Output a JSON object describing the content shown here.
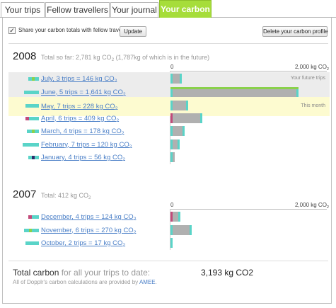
{
  "tabs": [
    {
      "label": "Your trips",
      "active": false
    },
    {
      "label": "Fellow travellers",
      "active": false
    },
    {
      "label": "Your journal",
      "active": false
    },
    {
      "label": "Your carbon",
      "active": true
    }
  ],
  "share": {
    "checked": true,
    "label": "Share your carbon totals with fellow travellers?",
    "update_label": "Update",
    "delete_label": "Delete your carbon profile"
  },
  "colors": {
    "tab_active": "#a6dd3a",
    "link": "#4a7fc7",
    "future_row": "#ececec",
    "current_row": "#fdfbd0",
    "bar_grey": "#b0b0b0",
    "bar_teal": "#5ad4c8",
    "bar_green": "#8ad14b",
    "bar_pink": "#c24a7a",
    "bar_navy": "#2d2d6b"
  },
  "scale": {
    "min_label": "0",
    "max_label": "2,000",
    "unit": "kg CO2",
    "max": 2000
  },
  "years": [
    {
      "year": "2008",
      "total_text": "Total so far: 2,781 kg CO2 (1,787kg of which is in the future)",
      "months": [
        {
          "label": "July, 3 trips = 146 kg CO2",
          "value": 146,
          "state": "future",
          "note": "Your future trips"
        },
        {
          "label": "June, 5 trips = 1,641 kg CO2",
          "value": 1641,
          "state": "future",
          "note": ""
        },
        {
          "label": "May, 7 trips = 228 kg CO2",
          "value": 228,
          "state": "current",
          "note": "This month"
        },
        {
          "label": "April, 6 trips = 409 kg CO2",
          "value": 409,
          "state": "past",
          "note": ""
        },
        {
          "label": "March, 4 trips = 178 kg CO2",
          "value": 178,
          "state": "past",
          "note": ""
        },
        {
          "label": "February, 7 trips = 120 kg CO2",
          "value": 120,
          "state": "past",
          "note": ""
        },
        {
          "label": "January, 4 trips = 56 kg CO2",
          "value": 56,
          "state": "past",
          "note": ""
        }
      ]
    },
    {
      "year": "2007",
      "total_text": "Total: 412 kg CO2",
      "months": [
        {
          "label": "December, 4 trips = 124 kg CO2",
          "value": 124,
          "state": "past",
          "note": ""
        },
        {
          "label": "November, 6 trips = 270 kg CO2",
          "value": 270,
          "state": "past",
          "note": ""
        },
        {
          "label": "October, 2 trips = 17 kg CO2",
          "value": 17,
          "state": "past",
          "note": ""
        }
      ]
    }
  ],
  "total": {
    "label_strong": "Total carbon",
    "label_rest": "for all your trips to date:",
    "value": "3,193 kg CO2",
    "footnote_prefix": "All of Dopplr's carbon calculations are provided by",
    "footnote_link": "AMEE",
    "footnote_suffix": "."
  }
}
